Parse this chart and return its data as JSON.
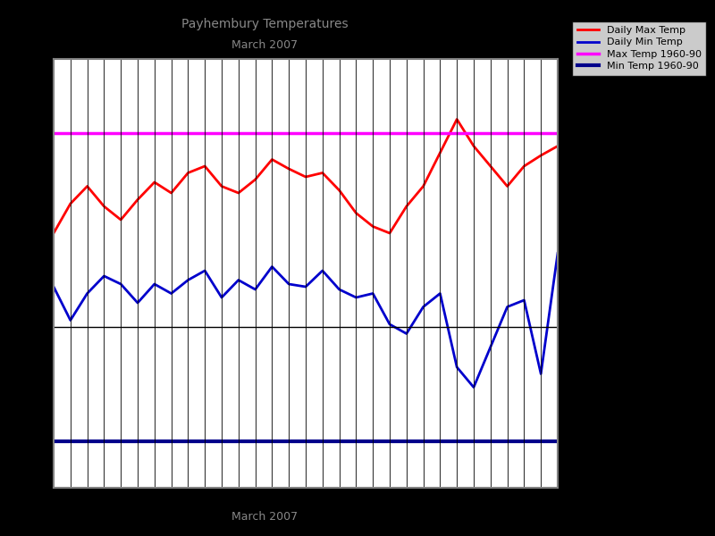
{
  "title": "Payhembury Temperatures",
  "subtitle": "March 2007",
  "daily_max": [
    7.0,
    9.2,
    10.5,
    9.0,
    8.0,
    9.5,
    10.8,
    10.0,
    11.5,
    12.0,
    10.5,
    10.0,
    11.0,
    12.5,
    11.8,
    11.2,
    11.5,
    10.2,
    8.5,
    7.5,
    7.0,
    9.0,
    10.5,
    13.0,
    15.5,
    13.5,
    12.0,
    10.5,
    12.0,
    12.8,
    13.5
  ],
  "daily_min": [
    3.0,
    0.5,
    2.5,
    3.8,
    3.2,
    1.8,
    3.2,
    2.5,
    3.5,
    4.2,
    2.2,
    3.5,
    2.8,
    4.5,
    3.2,
    3.0,
    4.2,
    2.8,
    2.2,
    2.5,
    0.2,
    -0.5,
    1.5,
    2.5,
    -3.0,
    -4.5,
    -1.5,
    1.5,
    2.0,
    -3.5,
    5.5
  ],
  "max_ref": 14.5,
  "min_ref": -8.5,
  "max_color": "#ff0000",
  "min_color": "#0000cc",
  "max_ref_color": "#ff00ff",
  "min_ref_color": "#00008b",
  "background": "#ffffff",
  "fig_background": "#000000",
  "num_days": 31,
  "ylim_min": -12,
  "ylim_max": 20,
  "title_color": "#888888"
}
